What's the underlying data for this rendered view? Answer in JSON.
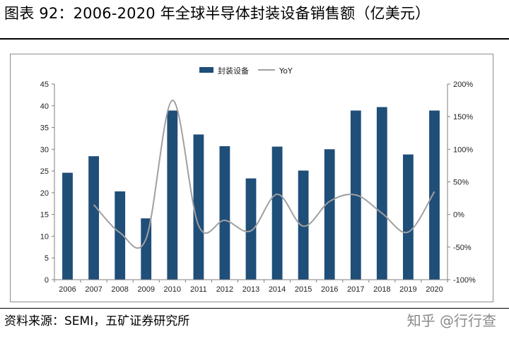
{
  "figure": {
    "title": "图表 92：2006-2020 年全球半导体封装设备销售额（亿美元）",
    "source": "资料来源：SEMI，五矿证券研究所",
    "watermark": "知乎 @行行查"
  },
  "colors": {
    "bar": "#1f4e79",
    "line": "#a0a0a0",
    "axis": "#7f7f7f",
    "frame": "#8c8c8c"
  },
  "chart_data": {
    "type": "bar",
    "categories": [
      "2006",
      "2007",
      "2008",
      "2009",
      "2010",
      "2011",
      "2012",
      "2013",
      "2014",
      "2015",
      "2016",
      "2017",
      "2018",
      "2019",
      "2020"
    ],
    "series": [
      {
        "name": "封装设备",
        "type": "bar",
        "axis": "left",
        "values": [
          24.6,
          28.4,
          20.3,
          14.1,
          38.9,
          33.4,
          30.7,
          23.3,
          30.6,
          25.1,
          30.0,
          38.9,
          39.7,
          28.8,
          38.9
        ]
      },
      {
        "name": "YoY",
        "type": "line",
        "smooth": true,
        "axis": "right",
        "values": [
          null,
          15,
          -28,
          -37,
          175,
          -17,
          -9,
          -25,
          31,
          -18,
          20,
          30,
          2,
          -27,
          35
        ]
      }
    ],
    "y_left": {
      "lim": [
        0,
        45
      ],
      "ticks": [
        0,
        5,
        10,
        15,
        20,
        25,
        30,
        35,
        40,
        45
      ],
      "tick_labels": [
        "0",
        "5",
        "10",
        "15",
        "20",
        "25",
        "30",
        "35",
        "40",
        "45"
      ]
    },
    "y_right": {
      "lim": [
        -100,
        200
      ],
      "ticks": [
        -100,
        -50,
        0,
        50,
        100,
        150,
        200
      ],
      "tick_labels": [
        "-100%",
        "-50%",
        "0%",
        "50%",
        "100%",
        "150%",
        "200%"
      ]
    },
    "grid": false,
    "legend": {
      "position": "top-center",
      "entries": [
        "封装设备",
        "YoY"
      ]
    }
  }
}
